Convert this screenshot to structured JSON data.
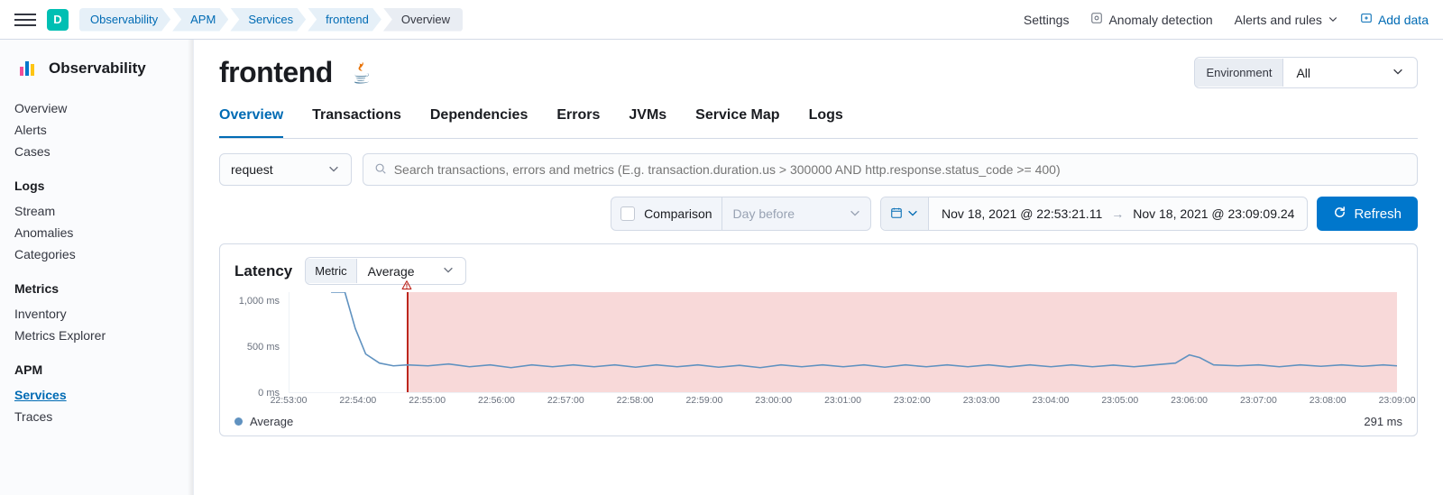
{
  "topbar": {
    "avatar_initial": "D",
    "avatar_bg": "#00bfb3",
    "breadcrumbs": [
      "Observability",
      "APM",
      "Services",
      "frontend",
      "Overview"
    ],
    "right": {
      "settings": "Settings",
      "anomaly": "Anomaly detection",
      "alerts": "Alerts and rules",
      "add_data": "Add data"
    }
  },
  "sidebar": {
    "title": "Observability",
    "root_items": [
      "Overview",
      "Alerts",
      "Cases"
    ],
    "groups": [
      {
        "title": "Logs",
        "items": [
          "Stream",
          "Anomalies",
          "Categories"
        ]
      },
      {
        "title": "Metrics",
        "items": [
          "Inventory",
          "Metrics Explorer"
        ]
      },
      {
        "title": "APM",
        "items": [
          "Services",
          "Traces"
        ]
      }
    ],
    "active_item": "Services"
  },
  "page": {
    "title": "frontend",
    "language": "java",
    "environment": {
      "label": "Environment",
      "value": "All"
    },
    "tabs": [
      "Overview",
      "Transactions",
      "Dependencies",
      "Errors",
      "JVMs",
      "Service Map",
      "Logs"
    ],
    "active_tab": "Overview",
    "transaction_type": "request",
    "search_placeholder": "Search transactions, errors and metrics (E.g. transaction.duration.us > 300000 AND http.response.status_code >= 400)",
    "comparison": {
      "label": "Comparison",
      "period": "Day before"
    },
    "date_range": {
      "from": "Nov 18, 2021 @ 22:53:21.11",
      "to": "Nov 18, 2021 @ 23:09:09.24"
    },
    "refresh_label": "Refresh"
  },
  "colors": {
    "primary": "#006bb4",
    "accent_button": "#0077cc",
    "danger": "#bd271e",
    "hazard_fill": "rgba(231,120,120,0.28)",
    "series": "#6092c0",
    "border": "#d3dae6",
    "text_sub": "#69707d"
  },
  "chart": {
    "title": "Latency",
    "metric_label": "Metric",
    "metric_value": "Average",
    "type": "line",
    "background_color": "#ffffff",
    "grid_color": "#eef2f7",
    "y_unit": "ms",
    "ylim": [
      0,
      1100
    ],
    "y_ticks": [
      {
        "v": 0,
        "label": "0 ms"
      },
      {
        "v": 500,
        "label": "500 ms"
      },
      {
        "v": 1000,
        "label": "1,000 ms"
      }
    ],
    "x_domain_minutes": [
      53,
      69
    ],
    "hazard_start_min": 54.7,
    "alert_line_min": 54.7,
    "x_ticks": [
      "22:53:00",
      "22:54:00",
      "22:55:00",
      "22:56:00",
      "22:57:00",
      "22:58:00",
      "22:59:00",
      "23:00:00",
      "23:01:00",
      "23:02:00",
      "23:03:00",
      "23:04:00",
      "23:05:00",
      "23:06:00",
      "23:07:00",
      "23:08:00",
      "23:09:00"
    ],
    "x_tick_minutes": [
      53,
      54,
      55,
      56,
      57,
      58,
      59,
      60,
      61,
      62,
      63,
      64,
      65,
      66,
      67,
      68,
      69
    ],
    "legend_label": "Average",
    "legend_value": "291 ms",
    "line_width": 1.6,
    "series": {
      "color": "#6092c0",
      "points_min_ms": [
        [
          53.6,
          1200
        ],
        [
          53.8,
          1100
        ],
        [
          53.95,
          700
        ],
        [
          54.1,
          420
        ],
        [
          54.3,
          320
        ],
        [
          54.5,
          290
        ],
        [
          54.7,
          300
        ],
        [
          55.0,
          290
        ],
        [
          55.3,
          310
        ],
        [
          55.6,
          280
        ],
        [
          55.9,
          300
        ],
        [
          56.2,
          270
        ],
        [
          56.5,
          300
        ],
        [
          56.8,
          280
        ],
        [
          57.1,
          300
        ],
        [
          57.4,
          280
        ],
        [
          57.7,
          300
        ],
        [
          58.0,
          275
        ],
        [
          58.3,
          300
        ],
        [
          58.6,
          280
        ],
        [
          58.9,
          300
        ],
        [
          59.2,
          275
        ],
        [
          59.5,
          295
        ],
        [
          59.8,
          270
        ],
        [
          60.1,
          300
        ],
        [
          60.4,
          280
        ],
        [
          60.7,
          300
        ],
        [
          61.0,
          280
        ],
        [
          61.3,
          300
        ],
        [
          61.6,
          275
        ],
        [
          61.9,
          300
        ],
        [
          62.2,
          280
        ],
        [
          62.5,
          300
        ],
        [
          62.8,
          280
        ],
        [
          63.1,
          300
        ],
        [
          63.4,
          278
        ],
        [
          63.7,
          300
        ],
        [
          64.0,
          280
        ],
        [
          64.3,
          300
        ],
        [
          64.6,
          280
        ],
        [
          64.9,
          298
        ],
        [
          65.2,
          280
        ],
        [
          65.5,
          300
        ],
        [
          65.8,
          320
        ],
        [
          66.0,
          410
        ],
        [
          66.15,
          380
        ],
        [
          66.35,
          300
        ],
        [
          66.7,
          290
        ],
        [
          67.0,
          300
        ],
        [
          67.3,
          280
        ],
        [
          67.6,
          300
        ],
        [
          67.9,
          285
        ],
        [
          68.2,
          300
        ],
        [
          68.5,
          285
        ],
        [
          68.8,
          300
        ],
        [
          69.0,
          290
        ]
      ]
    }
  }
}
